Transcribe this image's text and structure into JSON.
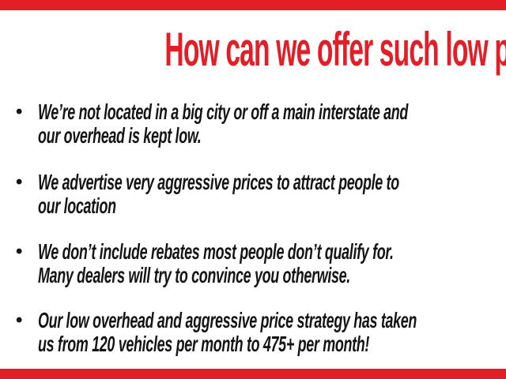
{
  "slide": {
    "colors": {
      "red": "#e31e26",
      "text": "#141414",
      "background": "#ffffff"
    },
    "title": "How can we offer such low prices?",
    "bullet_glyph": "•",
    "bullets": [
      {
        "text": "We’re not located in a big city or off a main interstate and\nour overhead is kept low."
      },
      {
        "text": "We advertise very aggressive prices to attract people to\nour location"
      },
      {
        "text": "We don’t include rebates most people don’t qualify for.\nMany dealers will try to convince you otherwise."
      },
      {
        "text": "Our low overhead and aggressive price strategy has taken\nus from 120 vehicles per month to 475+ per month!"
      }
    ]
  }
}
